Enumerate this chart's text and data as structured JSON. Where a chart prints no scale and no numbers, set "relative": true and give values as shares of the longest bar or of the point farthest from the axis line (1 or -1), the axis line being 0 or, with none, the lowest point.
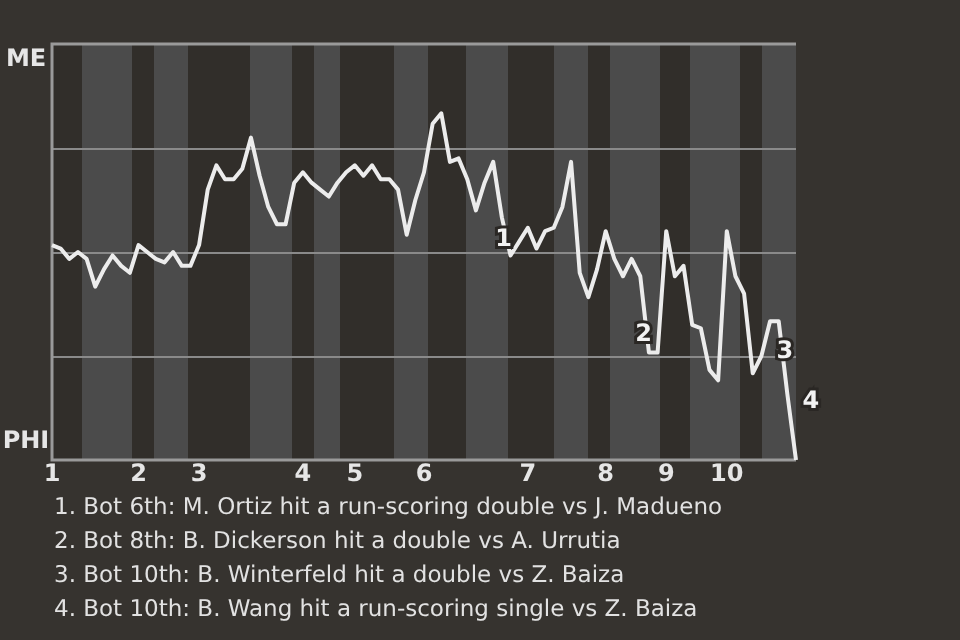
{
  "chart_data": {
    "type": "line",
    "color": "#ececec",
    "relative": true,
    "categories": [
      "1",
      null,
      null,
      null,
      null,
      null,
      null,
      null,
      null,
      null,
      "2",
      null,
      null,
      null,
      null,
      null,
      null,
      "3",
      null,
      null,
      null,
      null,
      null,
      null,
      null,
      null,
      null,
      null,
      null,
      "4",
      null,
      null,
      null,
      null,
      null,
      "5",
      null,
      null,
      null,
      null,
      null,
      null,
      null,
      "6",
      null,
      null,
      null,
      null,
      null,
      null,
      null,
      null,
      null,
      null,
      null,
      "7",
      null,
      null,
      null,
      null,
      null,
      null,
      null,
      null,
      "8",
      null,
      null,
      null,
      null,
      null,
      null,
      "9",
      null,
      null,
      null,
      null,
      null,
      null,
      "10",
      null,
      null,
      null,
      null,
      null,
      null,
      null,
      null
    ],
    "values": [
      0.62,
      0.61,
      0.58,
      0.6,
      0.58,
      0.5,
      0.55,
      0.59,
      0.56,
      0.54,
      0.62,
      0.6,
      0.58,
      0.57,
      0.6,
      0.56,
      0.56,
      0.62,
      0.78,
      0.85,
      0.81,
      0.81,
      0.84,
      0.93,
      0.82,
      0.73,
      0.68,
      0.68,
      0.8,
      0.83,
      0.8,
      0.78,
      0.76,
      0.8,
      0.83,
      0.85,
      0.82,
      0.85,
      0.81,
      0.81,
      0.78,
      0.65,
      0.75,
      0.83,
      0.97,
      1,
      0.86,
      0.87,
      0.81,
      0.72,
      0.8,
      0.86,
      0.7,
      0.59,
      0.63,
      0.67,
      0.61,
      0.66,
      0.67,
      0.73,
      0.86,
      0.54,
      0.47,
      0.55,
      0.66,
      0.58,
      0.53,
      0.58,
      0.53,
      0.31,
      0.31,
      0.66,
      0.53,
      0.56,
      0.39,
      0.38,
      0.26,
      0.23,
      0.66,
      0.53,
      0.48,
      0.25,
      0.3,
      0.4,
      0.4,
      0.19,
      0
    ],
    "grid": "y",
    "legend": false,
    "marker": "none",
    "line_style": "solid",
    "annotations": [
      "ME",
      "PHI",
      "1",
      "2",
      "3",
      "4",
      "1. Bot 6th: M. Ortiz hit a run-scoring double vs J. Madueno",
      "2. Bot 8th: B. Dickerson hit a double vs A. Urrutia",
      "3. Bot 10th: B. Winterfeld hit a double vs Z. Baiza",
      "4. Bot 10th: B. Wang hit a run-scoring single vs Z. Baiza"
    ]
  }
}
